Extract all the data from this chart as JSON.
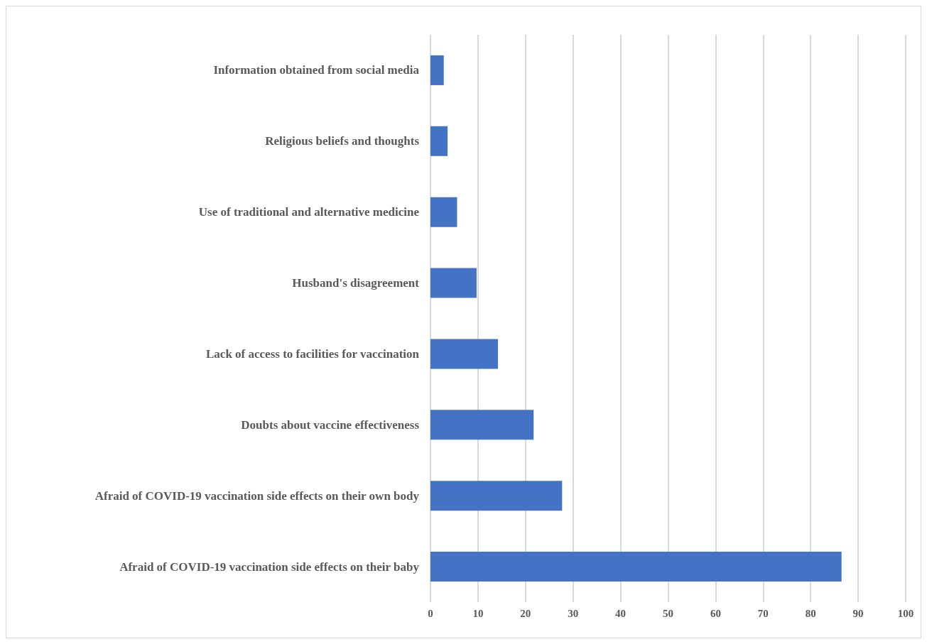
{
  "chart_data": {
    "type": "bar",
    "orientation": "horizontal",
    "categories": [
      "Information obtained from social media",
      "Religious beliefs and thoughts",
      "Use of traditional and alternative medicine",
      "Husband's disagreement",
      "Lack of access to facilities for vaccination",
      "Doubts about vaccine effectiveness",
      "Afraid of COVID-19 vaccination side effects on their own body",
      "Afraid of COVID-19 vaccination side effects on their baby"
    ],
    "values": [
      2.8,
      3.6,
      5.6,
      9.7,
      14.2,
      21.7,
      27.7,
      86.5
    ],
    "color": "#4472c4",
    "xlim": [
      0,
      100
    ],
    "xticks": [
      0,
      10,
      20,
      30,
      40,
      50,
      60,
      70,
      80,
      90,
      100
    ],
    "grid": "x"
  }
}
